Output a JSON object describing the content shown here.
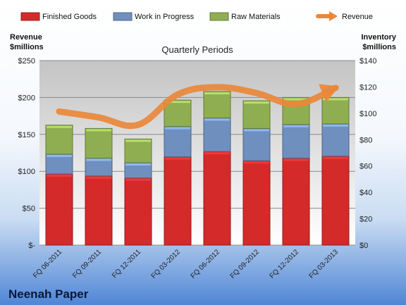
{
  "chart_data": {
    "type": "bar",
    "stacked": true,
    "title": "Quarterly Periods",
    "company": "Neenah Paper",
    "left_axis": {
      "label": [
        "Revenue",
        "$millions"
      ],
      "min": 0,
      "max": 250,
      "ticks": [
        "$-",
        "$50",
        "$100",
        "$150",
        "$200",
        "$250"
      ]
    },
    "right_axis": {
      "label": [
        "Inventory",
        "$millions"
      ],
      "min": 0,
      "max": 140,
      "ticks": [
        "$0",
        "$20",
        "$40",
        "$60",
        "$80",
        "$100",
        "$120",
        "$140"
      ]
    },
    "categories": [
      "FQ 06-2011",
      "FQ 09-2011",
      "FQ 12-2011",
      "FQ 03-2012",
      "FQ 06-2012",
      "FQ 09-2012",
      "FQ 12-2012",
      "FQ 03-2013"
    ],
    "series": [
      {
        "name": "Finished Goods",
        "axis": "right",
        "color": "#d42a2a",
        "values": [
          54,
          52.5,
          51,
          67,
          71,
          64,
          66,
          67.5
        ]
      },
      {
        "name": "Work in Progress",
        "axis": "right",
        "color": "#6f8fbe",
        "values": [
          15,
          13.5,
          11.5,
          23,
          25.5,
          24.5,
          25.5,
          24.5
        ]
      },
      {
        "name": "Raw Materials",
        "axis": "right",
        "color": "#8fae52",
        "values": [
          22,
          22.5,
          18,
          20,
          20,
          21,
          20.5,
          20
        ]
      },
      {
        "name": "Revenue",
        "type": "line",
        "axis": "left",
        "color": "#e9883a",
        "values": [
          181,
          173,
          163,
          204,
          214,
          206,
          191,
          213
        ]
      }
    ],
    "grid": true,
    "legend_position": "top"
  }
}
